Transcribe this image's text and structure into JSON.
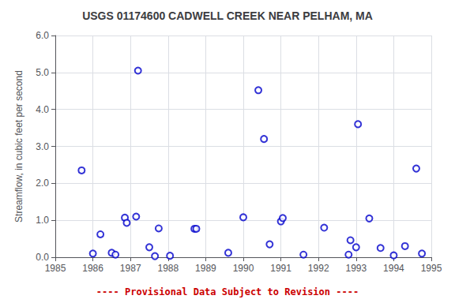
{
  "chart_data": {
    "type": "scatter",
    "title": "USGS 01174600 CADWELL CREEK NEAR PELHAM, MA",
    "ylabel": "Streamflow, in cubic feet per second",
    "x": [
      1985.7,
      1986.0,
      1986.2,
      1986.5,
      1986.6,
      1986.85,
      1986.9,
      1987.15,
      1987.2,
      1987.5,
      1987.65,
      1987.75,
      1988.05,
      1988.7,
      1988.75,
      1989.6,
      1990.0,
      1990.4,
      1990.55,
      1990.7,
      1991.0,
      1991.05,
      1991.6,
      1992.15,
      1992.8,
      1992.85,
      1993.0,
      1993.05,
      1993.35,
      1993.65,
      1994.0,
      1994.3,
      1994.6,
      1994.75
    ],
    "values": [
      2.35,
      0.1,
      0.62,
      0.12,
      0.07,
      1.07,
      0.93,
      1.1,
      5.05,
      0.27,
      0.03,
      0.78,
      0.04,
      0.77,
      0.77,
      0.12,
      1.08,
      4.52,
      3.2,
      0.35,
      0.97,
      1.06,
      0.07,
      0.8,
      0.07,
      0.46,
      0.27,
      3.6,
      1.05,
      0.25,
      0.05,
      0.3,
      2.4,
      0.1
    ],
    "color": "#0000CC",
    "marker": "circle",
    "xlim": [
      1985,
      1995
    ],
    "xticks": [
      1985,
      1986,
      1987,
      1988,
      1989,
      1990,
      1991,
      1992,
      1993,
      1994,
      1995
    ],
    "ylim": [
      0,
      6.0
    ],
    "yticks": [
      {
        "value": 0.0,
        "label": "0.0"
      },
      {
        "value": 1.0,
        "label": "1.0"
      },
      {
        "value": 2.0,
        "label": "2.0"
      },
      {
        "value": 3.0,
        "label": "3.0"
      },
      {
        "value": 4.0,
        "label": "4.0"
      },
      {
        "value": 5.0,
        "label": "5.0"
      },
      {
        "value": 6.0,
        "label": "6.0"
      }
    ],
    "grid": true,
    "annotations": [
      {
        "text": "---- Provisional Data Subject to Revision ----",
        "color": "#cc0000"
      }
    ]
  }
}
